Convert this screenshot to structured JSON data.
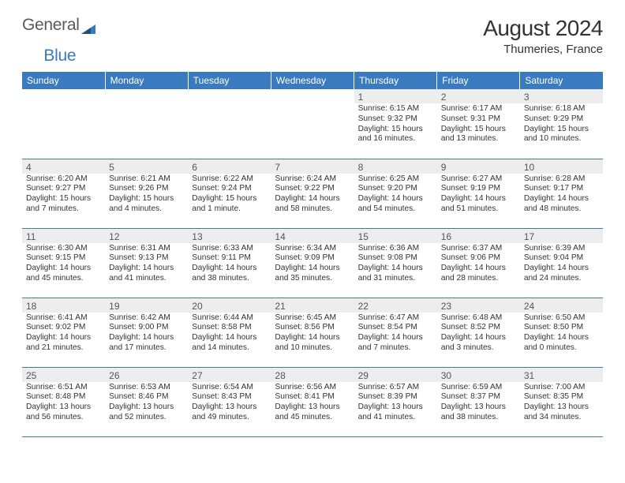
{
  "logo": {
    "text1": "General",
    "text2": "Blue"
  },
  "title": "August 2024",
  "location": "Thumeries, France",
  "weekdays": [
    "Sunday",
    "Monday",
    "Tuesday",
    "Wednesday",
    "Thursday",
    "Friday",
    "Saturday"
  ],
  "colors": {
    "header_bg": "#3a7bbf",
    "header_text": "#ffffff",
    "shade_bg": "#ededed",
    "rule": "#3a7bbf"
  },
  "weeks": [
    [
      null,
      null,
      null,
      null,
      {
        "n": "1",
        "sr": "6:15 AM",
        "ss": "9:32 PM",
        "dl": "15 hours and 16 minutes."
      },
      {
        "n": "2",
        "sr": "6:17 AM",
        "ss": "9:31 PM",
        "dl": "15 hours and 13 minutes."
      },
      {
        "n": "3",
        "sr": "6:18 AM",
        "ss": "9:29 PM",
        "dl": "15 hours and 10 minutes."
      }
    ],
    [
      {
        "n": "4",
        "sr": "6:20 AM",
        "ss": "9:27 PM",
        "dl": "15 hours and 7 minutes."
      },
      {
        "n": "5",
        "sr": "6:21 AM",
        "ss": "9:26 PM",
        "dl": "15 hours and 4 minutes."
      },
      {
        "n": "6",
        "sr": "6:22 AM",
        "ss": "9:24 PM",
        "dl": "15 hours and 1 minute."
      },
      {
        "n": "7",
        "sr": "6:24 AM",
        "ss": "9:22 PM",
        "dl": "14 hours and 58 minutes."
      },
      {
        "n": "8",
        "sr": "6:25 AM",
        "ss": "9:20 PM",
        "dl": "14 hours and 54 minutes."
      },
      {
        "n": "9",
        "sr": "6:27 AM",
        "ss": "9:19 PM",
        "dl": "14 hours and 51 minutes."
      },
      {
        "n": "10",
        "sr": "6:28 AM",
        "ss": "9:17 PM",
        "dl": "14 hours and 48 minutes."
      }
    ],
    [
      {
        "n": "11",
        "sr": "6:30 AM",
        "ss": "9:15 PM",
        "dl": "14 hours and 45 minutes."
      },
      {
        "n": "12",
        "sr": "6:31 AM",
        "ss": "9:13 PM",
        "dl": "14 hours and 41 minutes."
      },
      {
        "n": "13",
        "sr": "6:33 AM",
        "ss": "9:11 PM",
        "dl": "14 hours and 38 minutes."
      },
      {
        "n": "14",
        "sr": "6:34 AM",
        "ss": "9:09 PM",
        "dl": "14 hours and 35 minutes."
      },
      {
        "n": "15",
        "sr": "6:36 AM",
        "ss": "9:08 PM",
        "dl": "14 hours and 31 minutes."
      },
      {
        "n": "16",
        "sr": "6:37 AM",
        "ss": "9:06 PM",
        "dl": "14 hours and 28 minutes."
      },
      {
        "n": "17",
        "sr": "6:39 AM",
        "ss": "9:04 PM",
        "dl": "14 hours and 24 minutes."
      }
    ],
    [
      {
        "n": "18",
        "sr": "6:41 AM",
        "ss": "9:02 PM",
        "dl": "14 hours and 21 minutes."
      },
      {
        "n": "19",
        "sr": "6:42 AM",
        "ss": "9:00 PM",
        "dl": "14 hours and 17 minutes."
      },
      {
        "n": "20",
        "sr": "6:44 AM",
        "ss": "8:58 PM",
        "dl": "14 hours and 14 minutes."
      },
      {
        "n": "21",
        "sr": "6:45 AM",
        "ss": "8:56 PM",
        "dl": "14 hours and 10 minutes."
      },
      {
        "n": "22",
        "sr": "6:47 AM",
        "ss": "8:54 PM",
        "dl": "14 hours and 7 minutes."
      },
      {
        "n": "23",
        "sr": "6:48 AM",
        "ss": "8:52 PM",
        "dl": "14 hours and 3 minutes."
      },
      {
        "n": "24",
        "sr": "6:50 AM",
        "ss": "8:50 PM",
        "dl": "14 hours and 0 minutes."
      }
    ],
    [
      {
        "n": "25",
        "sr": "6:51 AM",
        "ss": "8:48 PM",
        "dl": "13 hours and 56 minutes."
      },
      {
        "n": "26",
        "sr": "6:53 AM",
        "ss": "8:46 PM",
        "dl": "13 hours and 52 minutes."
      },
      {
        "n": "27",
        "sr": "6:54 AM",
        "ss": "8:43 PM",
        "dl": "13 hours and 49 minutes."
      },
      {
        "n": "28",
        "sr": "6:56 AM",
        "ss": "8:41 PM",
        "dl": "13 hours and 45 minutes."
      },
      {
        "n": "29",
        "sr": "6:57 AM",
        "ss": "8:39 PM",
        "dl": "13 hours and 41 minutes."
      },
      {
        "n": "30",
        "sr": "6:59 AM",
        "ss": "8:37 PM",
        "dl": "13 hours and 38 minutes."
      },
      {
        "n": "31",
        "sr": "7:00 AM",
        "ss": "8:35 PM",
        "dl": "13 hours and 34 minutes."
      }
    ]
  ],
  "labels": {
    "sunrise": "Sunrise:",
    "sunset": "Sunset:",
    "daylight": "Daylight:"
  }
}
